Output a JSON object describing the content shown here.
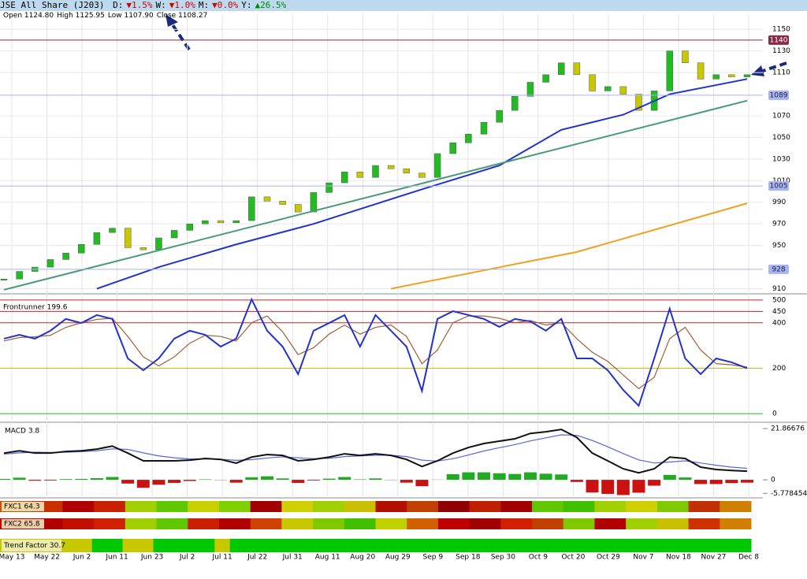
{
  "header": {
    "title": "JSE All Share (J203)",
    "d_label": "D:",
    "d_change": "▼1.5%",
    "w_label": "W:",
    "w_change": "▼1.0%",
    "m_label": "M:",
    "m_change": "▼0.0%",
    "y_label": "Y:",
    "y_change": "▲26.5%",
    "open": "Open 1124.80",
    "high": "High 1125.95",
    "low": "Low 1107.90",
    "close": "Close 1108.27"
  },
  "chart_data": [
    {
      "type": "candlestick",
      "values": [
        919,
        926,
        930,
        937,
        943,
        951,
        962,
        966,
        948,
        946,
        957,
        964,
        970,
        973,
        971,
        973,
        995,
        991,
        988,
        981,
        999,
        1008,
        1018,
        1013,
        1024,
        1021,
        1017,
        1013,
        1035,
        1045,
        1053,
        1064,
        1075,
        1088,
        1101,
        1108,
        1119,
        1108,
        1093,
        1097,
        1090,
        1075,
        1093,
        1130,
        1119,
        1104,
        1108,
        1106,
        1108
      ],
      "up_color": "#22bb22",
      "down_color": "#c8c800",
      "lines": [
        {
          "color": "#2233cc",
          "x": [
            6,
            10,
            15,
            20,
            27,
            32,
            36,
            40,
            43,
            48
          ],
          "values": [
            910,
            930,
            951,
            970,
            1002,
            1024,
            1057,
            1071,
            1090,
            1104
          ]
        },
        {
          "color": "#4a9a7a",
          "x": [
            0,
            48
          ],
          "values": [
            909,
            1084
          ]
        },
        {
          "color": "#f0a020",
          "x": [
            25,
            37,
            48
          ],
          "values": [
            910,
            944,
            989
          ]
        }
      ],
      "levels": [
        1140,
        1089,
        1005,
        928
      ],
      "level_colors": [
        "#8b2848",
        "#a8b4f4",
        "#a8b4f4",
        "#a8b4f4"
      ],
      "ylim": [
        906,
        1164
      ],
      "yticks": [
        910,
        950,
        970,
        990,
        1010,
        1030,
        1050,
        1070,
        1110,
        1130,
        1150
      ],
      "grid": true
    },
    {
      "type": "line",
      "title": "Frontrunner 199.6",
      "series": [
        {
          "color": "#2233cc",
          "values": [
            330,
            347,
            330,
            365,
            417,
            399,
            434,
            417,
            243,
            191,
            243,
            330,
            365,
            347,
            295,
            330,
            503,
            365,
            295,
            174,
            365,
            399,
            434,
            295,
            434,
            365,
            295,
            100,
            417,
            451,
            434,
            417,
            382,
            417,
            406,
            365,
            417,
            243,
            243,
            191,
            104,
            35,
            243,
            462,
            243,
            174,
            243,
            226,
            200
          ]
        },
        {
          "color": "#a0603a",
          "values": [
            320,
            335,
            338,
            345,
            380,
            400,
            415,
            420,
            340,
            250,
            210,
            250,
            310,
            345,
            340,
            320,
            400,
            430,
            360,
            260,
            290,
            350,
            390,
            350,
            380,
            390,
            340,
            220,
            280,
            400,
            430,
            430,
            420,
            400,
            410,
            390,
            400,
            330,
            270,
            230,
            170,
            110,
            160,
            330,
            380,
            280,
            220,
            215,
            205
          ]
        }
      ],
      "ylim": [
        -17,
        524
      ],
      "yticks": [
        0,
        200,
        400,
        450,
        500
      ],
      "tick_line_colors": [
        "#22bb22",
        "#c8b400",
        "#cc2222",
        "#cc2222",
        "#cc2222"
      ]
    },
    {
      "type": "macd",
      "title": "MACD 3.8",
      "series": [
        {
          "color": "#111111",
          "values": [
            11.4,
            12.4,
            11.4,
            11.4,
            12.1,
            12.4,
            13.1,
            14.4,
            11.4,
            8.1,
            8.1,
            8.1,
            8.4,
            9.1,
            8.7,
            7.1,
            9.7,
            10.8,
            10.4,
            8.1,
            8.7,
            9.7,
            11.1,
            10.4,
            11.1,
            10.4,
            8.7,
            5.7,
            8.1,
            11.4,
            13.8,
            15.5,
            16.5,
            17.5,
            19.8,
            20.5,
            21.5,
            18.1,
            11.4,
            8.1,
            4.7,
            3.0,
            4.7,
            9.7,
            9.1,
            5.4,
            4.4,
            4.0,
            3.7
          ]
        },
        {
          "color": "#5566dd",
          "values": [
            11.0,
            11.5,
            11.8,
            11.7,
            11.8,
            12.0,
            12.4,
            13.2,
            13.0,
            11.5,
            10.2,
            9.4,
            8.9,
            8.9,
            8.8,
            8.3,
            8.6,
            9.3,
            9.8,
            9.4,
            9.0,
            9.2,
            9.9,
            10.2,
            10.5,
            10.5,
            9.9,
            8.4,
            8.0,
            9.0,
            10.6,
            12.3,
            13.7,
            15.0,
            16.6,
            17.9,
            19.2,
            19.0,
            16.8,
            14.1,
            11.2,
            8.5,
            7.2,
            7.6,
            8.1,
            7.2,
            6.2,
            5.4,
            4.9
          ]
        }
      ],
      "bars": [
        0.4,
        0.9,
        -0.4,
        -0.3,
        0.3,
        0.4,
        0.7,
        1.2,
        -1.6,
        -3.4,
        -2.1,
        -1.3,
        -0.5,
        0.2,
        -0.1,
        -1.2,
        1.1,
        1.5,
        0.6,
        -1.3,
        -0.3,
        0.5,
        1.2,
        0.2,
        0.6,
        -0.1,
        -1.2,
        -2.7,
        0.1,
        2.4,
        3.2,
        3.2,
        2.8,
        2.5,
        3.2,
        2.6,
        2.3,
        -0.9,
        -5.4,
        -6.0,
        -6.5,
        -5.5,
        -2.5,
        2.1,
        1.0,
        -1.8,
        -1.8,
        -1.4,
        -1.2
      ],
      "bar_up_color": "#22aa22",
      "bar_down_color": "#cc1111",
      "ylim": [
        -7.7,
        23.9
      ],
      "yticks": [
        -5.778454,
        0,
        21.86676
      ]
    }
  ],
  "strips": [
    {
      "label": "FXC1 64.3",
      "colors": [
        "#d05000",
        "#c83000",
        "#b00000",
        "#c82000",
        "#a0d000",
        "#60c800",
        "#c8d000",
        "#80d000",
        "#a00000",
        "#d0d000",
        "#a0d000",
        "#c8c000",
        "#b01000",
        "#c04000",
        "#900000",
        "#c02000",
        "#a00000",
        "#60c800",
        "#40c000",
        "#a0d000",
        "#d0d000",
        "#80c800",
        "#c03000",
        "#d08000"
      ]
    },
    {
      "label": "FXC2 65.8",
      "colors": [
        "#c00000",
        "#b00000",
        "#c01000",
        "#d02000",
        "#a0d000",
        "#60c800",
        "#c82000",
        "#b00000",
        "#d04000",
        "#c8c800",
        "#80c800",
        "#40c000",
        "#c0d000",
        "#d06000",
        "#c00000",
        "#a00000",
        "#d02000",
        "#c04000",
        "#80c800",
        "#b00000",
        "#a0d000",
        "#c8c000",
        "#d03000",
        "#d08000"
      ]
    },
    {
      "label": "Trend Factor 30.7",
      "colors": [
        "#c8c800",
        "#c8c800",
        "#c8c800",
        "#c8c800",
        "#c8c800",
        "#c8c800",
        "#00c800",
        "#00c800",
        "#c8c800",
        "#c8c800",
        "#00c800",
        "#00c800",
        "#00c800",
        "#00c800",
        "#c8c800",
        "#00c800",
        "#00c800",
        "#00c800",
        "#00c800",
        "#00c800",
        "#00c800",
        "#00c800",
        "#00c800",
        "#00c800",
        "#00c800",
        "#00c800",
        "#00c800",
        "#00c800",
        "#00c800",
        "#00c800",
        "#00c800",
        "#00c800",
        "#00c800",
        "#00c800",
        "#00c800",
        "#00c800",
        "#00c800",
        "#00c800",
        "#00c800",
        "#00c800",
        "#00c800",
        "#00c800",
        "#00c800",
        "#00c800",
        "#00c800",
        "#00c800",
        "#00c800",
        "#00c800",
        "#00c800"
      ]
    }
  ],
  "x_labels": [
    "May 13",
    "May 22",
    "Jun 2",
    "Jun 11",
    "Jun 23",
    "Jul 2",
    "Jul 11",
    "Jul 22",
    "Jul 31",
    "Aug 11",
    "Aug 20",
    "Aug 29",
    "Sep 9",
    "Sep 18",
    "Sep 30",
    "Oct 9",
    "Oct 20",
    "Oct 29",
    "Nov 7",
    "Nov 18",
    "Nov 27",
    "Dec 8"
  ]
}
